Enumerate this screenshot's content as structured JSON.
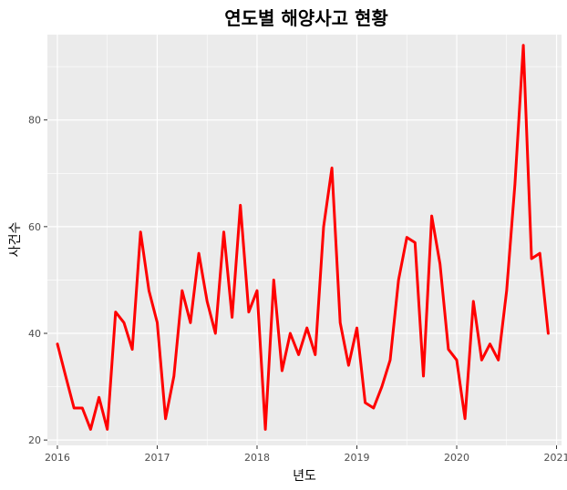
{
  "chart_data": {
    "type": "line",
    "title": "연도별 해양사고 현황",
    "xlabel": "년도",
    "ylabel": "사건수",
    "xlim": [
      2015.9,
      2021.05
    ],
    "ylim": [
      19,
      96
    ],
    "x_ticks": [
      2016,
      2017,
      2018,
      2019,
      2020,
      2021
    ],
    "x_tick_labels": [
      "2016",
      "2017",
      "2018",
      "2019",
      "2020",
      "2021"
    ],
    "y_ticks": [
      20,
      40,
      60,
      80
    ],
    "y_tick_labels": [
      "20",
      "40",
      "60",
      "80"
    ],
    "grid": true,
    "legend": "none",
    "series": [
      {
        "color": "#ff0000",
        "x": [
          2016.0,
          2016.083,
          2016.167,
          2016.25,
          2016.333,
          2016.417,
          2016.5,
          2016.583,
          2016.667,
          2016.75,
          2016.833,
          2016.917,
          2017.0,
          2017.083,
          2017.167,
          2017.25,
          2017.333,
          2017.417,
          2017.5,
          2017.583,
          2017.667,
          2017.75,
          2017.833,
          2017.917,
          2018.0,
          2018.083,
          2018.167,
          2018.25,
          2018.333,
          2018.417,
          2018.5,
          2018.583,
          2018.667,
          2018.75,
          2018.833,
          2018.917,
          2019.0,
          2019.083,
          2019.167,
          2019.25,
          2019.333,
          2019.417,
          2019.5,
          2019.583,
          2019.667,
          2019.75,
          2019.833,
          2019.917,
          2020.0,
          2020.083,
          2020.167,
          2020.25,
          2020.333,
          2020.417,
          2020.5,
          2020.583,
          2020.667,
          2020.75,
          2020.833,
          2020.917
        ],
        "y": [
          38,
          32,
          26,
          26,
          22,
          28,
          22,
          44,
          42,
          37,
          59,
          48,
          42,
          24,
          32,
          48,
          42,
          55,
          46,
          40,
          59,
          43,
          64,
          44,
          48,
          22,
          50,
          33,
          40,
          36,
          41,
          36,
          60,
          71,
          42,
          34,
          41,
          27,
          26,
          30,
          35,
          50,
          58,
          57,
          32,
          62,
          53,
          37,
          35,
          24,
          46,
          35,
          38,
          35,
          48,
          68,
          94,
          54,
          55,
          40
        ]
      }
    ]
  }
}
